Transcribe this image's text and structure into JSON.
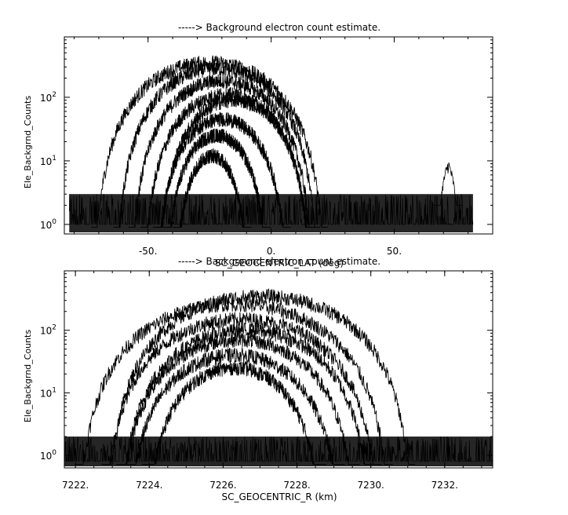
{
  "chart_data": [
    {
      "type": "line",
      "title": "-----> Background electron count estimate.",
      "xlabel": "SC_GEOCENTRIC_LAT (deg)",
      "ylabel": "Ele_Backgrnd_Counts",
      "xlim": [
        -84,
        90
      ],
      "ylim_log10": [
        -0.15,
        2.95
      ],
      "yscale": "log",
      "x_ticks": [
        {
          "value": -50,
          "label": "-50."
        },
        {
          "value": 0,
          "label": "0."
        },
        {
          "value": 50,
          "label": "50."
        }
      ],
      "x_minor_step": 10,
      "y_ticks": [
        {
          "value": 1,
          "base": "10",
          "exp": "0"
        },
        {
          "value": 10,
          "base": "10",
          "exp": "1"
        },
        {
          "value": 100,
          "base": "10",
          "exp": "2"
        }
      ],
      "data_extent": [
        -82,
        82
      ],
      "noise_band": [
        1,
        3
      ],
      "spike": {
        "x": 72,
        "peak": 11
      },
      "series": [
        {
          "center": -25,
          "halfwidth": 48,
          "peak": 350
        },
        {
          "center": -22,
          "halfwidth": 42,
          "peak": 280
        },
        {
          "center": -20,
          "halfwidth": 38,
          "peak": 180
        },
        {
          "center": -18,
          "halfwidth": 35,
          "peak": 110
        },
        {
          "center": -15,
          "halfwidth": 32,
          "peak": 90
        },
        {
          "center": -20,
          "halfwidth": 28,
          "peak": 45
        },
        {
          "center": -22,
          "halfwidth": 22,
          "peak": 25
        },
        {
          "center": -24,
          "halfwidth": 16,
          "peak": 12
        }
      ]
    },
    {
      "type": "line",
      "title": "-----> Background electron count estimate.",
      "xlabel": "SC_GEOCENTRIC_R (km)",
      "ylabel": "Ele_Backgrnd_Counts",
      "xlim": [
        7221.7,
        7233.3
      ],
      "ylim_log10": [
        -0.2,
        2.95
      ],
      "yscale": "log",
      "x_ticks": [
        {
          "value": 7222,
          "label": "7222."
        },
        {
          "value": 7224,
          "label": "7224."
        },
        {
          "value": 7226,
          "label": "7226."
        },
        {
          "value": 7228,
          "label": "7228."
        },
        {
          "value": 7230,
          "label": "7230."
        },
        {
          "value": 7232,
          "label": "7232."
        }
      ],
      "x_minor_step": 0.5,
      "y_ticks": [
        {
          "value": 1,
          "base": "10",
          "exp": "0"
        },
        {
          "value": 10,
          "base": "10",
          "exp": "1"
        },
        {
          "value": 100,
          "base": "10",
          "exp": "2"
        }
      ],
      "data_extent": [
        7221.7,
        7233.3
      ],
      "noise_band": [
        0.8,
        2
      ],
      "series": [
        {
          "center": 7227.0,
          "halfwidth": 4.2,
          "peak": 350
        },
        {
          "center": 7226.3,
          "halfwidth": 4.3,
          "peak": 260
        },
        {
          "center": 7226.5,
          "halfwidth": 3.8,
          "peak": 150
        },
        {
          "center": 7226.6,
          "halfwidth": 3.5,
          "peak": 100
        },
        {
          "center": 7226.4,
          "halfwidth": 3.3,
          "peak": 70
        },
        {
          "center": 7226.3,
          "halfwidth": 3.0,
          "peak": 40
        },
        {
          "center": 7226.3,
          "halfwidth": 2.5,
          "peak": 25
        }
      ]
    }
  ]
}
